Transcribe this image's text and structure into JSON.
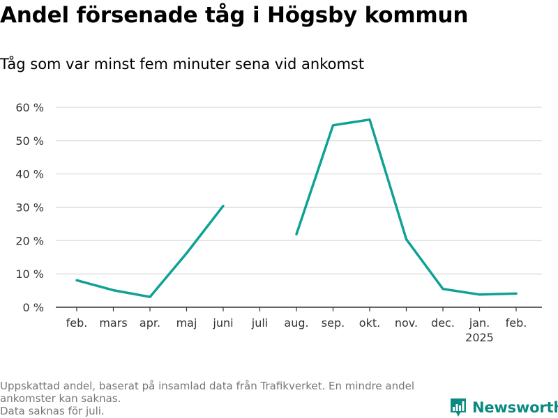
{
  "chart_data": {
    "type": "line",
    "title": "Andel försenade tåg i Högsby kommun",
    "subtitle": "Tåg som var minst fem minuter sena vid ankomst",
    "categories": [
      "feb.",
      "mars",
      "apr.",
      "maj",
      "juni",
      "juli",
      "aug.",
      "sep.",
      "okt.",
      "nov.",
      "dec.",
      "jan.",
      "feb."
    ],
    "year_label": {
      "category_index": 11,
      "text": "2025"
    },
    "series": [
      {
        "values": [
          8.1,
          5.1,
          3.1,
          16.2,
          30.4,
          null,
          21.9,
          54.6,
          56.3,
          20.4,
          5.5,
          3.8,
          4.1
        ],
        "color": "#10a195"
      }
    ],
    "ylim": [
      0,
      60
    ],
    "yticks": [
      0,
      10,
      20,
      30,
      40,
      50,
      60
    ],
    "ytick_labels": [
      "0 %",
      "10 %",
      "20 %",
      "30 %",
      "40 %",
      "50 %",
      "60 %"
    ],
    "xlabel": "",
    "ylabel": "",
    "grid": true,
    "legend": "none"
  },
  "footnote": {
    "lines": [
      "Uppskattad andel, baserat på insamlad data från Trafikverket. En mindre andel",
      "ankomster kan saknas.",
      "Data saknas för juli."
    ]
  },
  "logo": {
    "text": "Newsworthy",
    "icon": "bar-chart-icon",
    "color": "#0a8a80"
  }
}
